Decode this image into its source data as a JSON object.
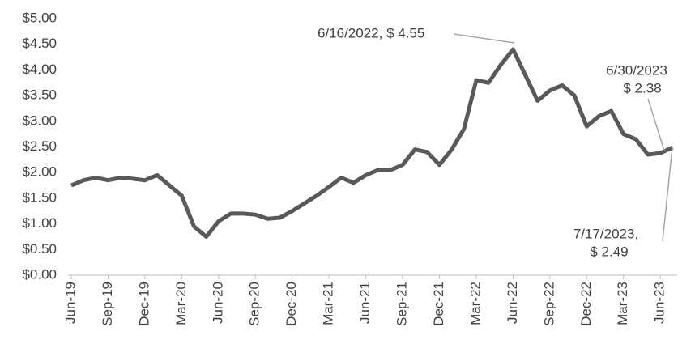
{
  "chart_data": {
    "type": "line",
    "categories": [
      "Jun-19",
      null,
      null,
      "Sep-19",
      null,
      null,
      "Dec-19",
      null,
      null,
      "Mar-20",
      null,
      null,
      "Jun-20",
      null,
      null,
      "Sep-20",
      null,
      null,
      "Dec-20",
      null,
      null,
      "Mar-21",
      null,
      null,
      "Jun-21",
      null,
      null,
      "Sep-21",
      null,
      null,
      "Dec-21",
      null,
      null,
      "Mar-22",
      null,
      null,
      "Jun-22",
      null,
      null,
      "Sep-22",
      null,
      null,
      "Dec-22",
      null,
      null,
      "Mar-23",
      null,
      null,
      "Jun-23",
      null
    ],
    "series": [
      {
        "color": "#595959",
        "values": [
          1.75,
          1.85,
          1.9,
          1.85,
          1.9,
          1.88,
          1.85,
          1.95,
          1.75,
          1.55,
          0.95,
          0.75,
          1.05,
          1.2,
          1.2,
          1.18,
          1.1,
          1.12,
          1.25,
          1.4,
          1.55,
          1.72,
          1.9,
          1.8,
          1.95,
          2.05,
          2.05,
          2.15,
          2.45,
          2.4,
          2.15,
          2.45,
          2.85,
          3.8,
          3.75,
          4.1,
          4.4,
          3.9,
          3.4,
          3.6,
          3.7,
          3.5,
          2.9,
          3.1,
          3.2,
          2.75,
          2.65,
          2.35,
          2.38,
          2.49
        ]
      }
    ],
    "ylim": [
      0,
      5
    ],
    "yticks": [
      {
        "value": 0,
        "label": "$0.00"
      },
      {
        "value": 0.5,
        "label": "$0.50"
      },
      {
        "value": 1,
        "label": "$1.00"
      },
      {
        "value": 1.5,
        "label": "$1.50"
      },
      {
        "value": 2,
        "label": "$2.00"
      },
      {
        "value": 2.5,
        "label": "$2.50"
      },
      {
        "value": 3,
        "label": "$3.00"
      },
      {
        "value": 3.5,
        "label": "$3.50"
      },
      {
        "value": 4,
        "label": "$4.00"
      },
      {
        "value": 4.5,
        "label": "$4.50"
      },
      {
        "value": 5,
        "label": "$5.00"
      }
    ],
    "grid": false,
    "annotations": [
      {
        "lines": [
          "6/16/2022, $ 4.55"
        ]
      },
      {
        "lines": [
          "6/30/2023",
          "$ 2.38"
        ]
      },
      {
        "lines": [
          "7/17/2023,",
          "$ 2.49"
        ]
      }
    ]
  }
}
